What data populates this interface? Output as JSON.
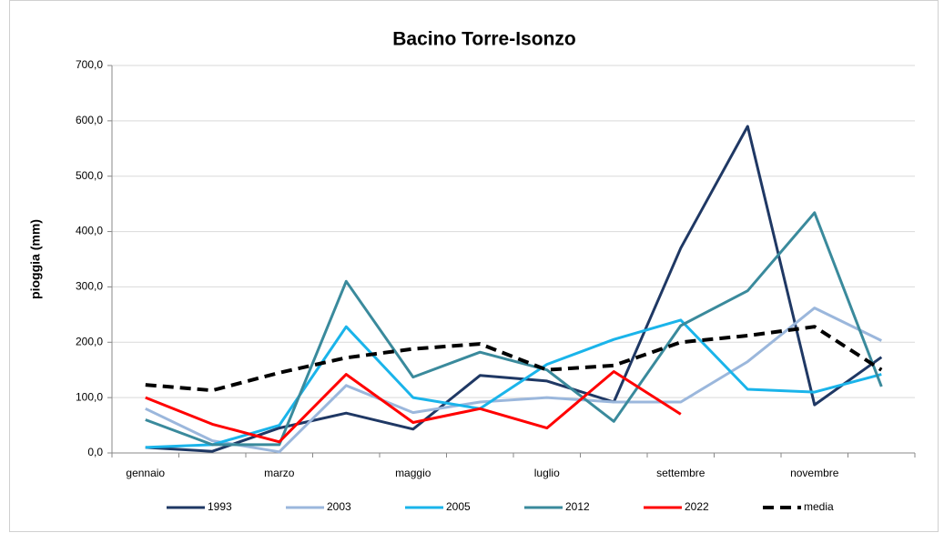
{
  "chart_data": {
    "type": "line",
    "title": "Bacino Torre-Isonzo",
    "y_label": "pioggia (mm)",
    "categories": [
      "gennaio",
      null,
      "marzo",
      null,
      "maggio",
      null,
      "luglio",
      null,
      "settembre",
      null,
      "novembre",
      null
    ],
    "ylim": [
      0,
      700
    ],
    "yticks": [
      {
        "value": 0,
        "label": "0,0"
      },
      {
        "value": 100,
        "label": "100,0"
      },
      {
        "value": 200,
        "label": "200,0"
      },
      {
        "value": 300,
        "label": "300,0"
      },
      {
        "value": 400,
        "label": "400,0"
      },
      {
        "value": 500,
        "label": "500,0"
      },
      {
        "value": 600,
        "label": "600,0"
      },
      {
        "value": 700,
        "label": "700,0"
      }
    ],
    "grid": true,
    "legend": "bottom",
    "series": [
      {
        "name": "1993",
        "color": "#1f3864",
        "values": [
          10,
          3,
          45,
          72,
          43,
          140,
          130,
          92,
          370,
          590,
          87,
          173
        ]
      },
      {
        "name": "2003",
        "color": "#9bb7dc",
        "values": [
          80,
          22,
          2,
          122,
          73,
          92,
          100,
          92,
          92,
          165,
          262,
          203
        ]
      },
      {
        "name": "2005",
        "color": "#1ab4ea",
        "values": [
          10,
          15,
          50,
          228,
          100,
          80,
          160,
          205,
          240,
          115,
          110,
          142
        ]
      },
      {
        "name": "2012",
        "color": "#3a8a9c",
        "values": [
          60,
          15,
          15,
          310,
          137,
          182,
          150,
          57,
          230,
          293,
          434,
          120
        ]
      },
      {
        "name": "2022",
        "color": "#ff0000",
        "values": [
          100,
          52,
          20,
          142,
          55,
          80,
          45,
          147,
          70,
          null,
          null,
          null
        ]
      },
      {
        "name": "media",
        "color": "#000000",
        "dashed": true,
        "values": [
          123,
          113,
          145,
          172,
          188,
          197,
          150,
          158,
          200,
          212,
          228,
          150
        ]
      }
    ]
  }
}
